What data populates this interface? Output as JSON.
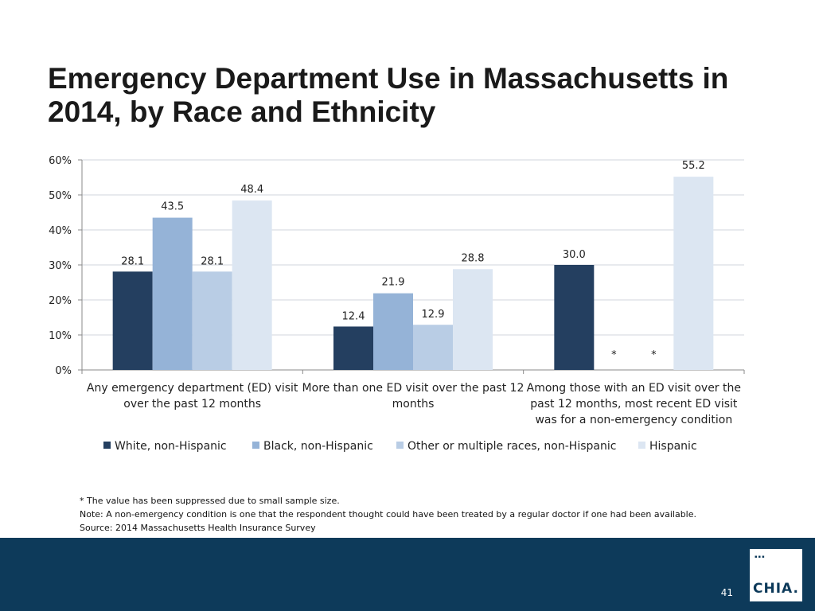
{
  "title": {
    "line1": "Emergency Department Use in Massachusetts in",
    "line2": "2014, by Race and Ethnicity"
  },
  "chart_data": {
    "type": "bar",
    "categories": [
      [
        "Any emergency department (ED) visit",
        "over the past 12 months"
      ],
      [
        "More than one ED visit over the past 12",
        "months"
      ],
      [
        "Among those with an ED visit over the",
        "past 12 months, most recent ED visit",
        "was for a non-emergency condition"
      ]
    ],
    "series": [
      {
        "name": "White, non-Hispanic",
        "color": "#243f60",
        "values": [
          28.1,
          12.4,
          30.0
        ],
        "labels": [
          "28.1",
          "12.4",
          "30.0"
        ]
      },
      {
        "name": "Black, non-Hispanic",
        "color": "#95b3d7",
        "values": [
          43.5,
          21.9,
          null
        ],
        "labels": [
          "43.5",
          "21.9",
          "*"
        ]
      },
      {
        "name": "Other or multiple races, non-Hispanic",
        "color": "#b9cde5",
        "values": [
          28.1,
          12.9,
          null
        ],
        "labels": [
          "28.1",
          "12.9",
          "*"
        ]
      },
      {
        "name": "Hispanic",
        "color": "#dce6f2",
        "values": [
          48.4,
          28.8,
          55.2
        ],
        "labels": [
          "48.4",
          "28.8",
          "55.2"
        ]
      }
    ],
    "y_ticks": [
      "0%",
      "10%",
      "20%",
      "30%",
      "40%",
      "50%",
      "60%"
    ],
    "ylim": [
      0,
      60
    ],
    "grid": true,
    "legend": "bottom",
    "xlabel": "",
    "ylabel": ""
  },
  "notes": [
    "* The value has been suppressed due to small sample size.",
    "Note: A non-emergency condition is one that the respondent thought could have been treated by a regular doctor if one had been available.",
    "Source:  2014 Massachusetts Health Insurance Survey"
  ],
  "footer": {
    "page_number": "41",
    "logo_text": "CHIA.",
    "logo_dots": "▪▪▪",
    "background": "#0d3a5a"
  }
}
